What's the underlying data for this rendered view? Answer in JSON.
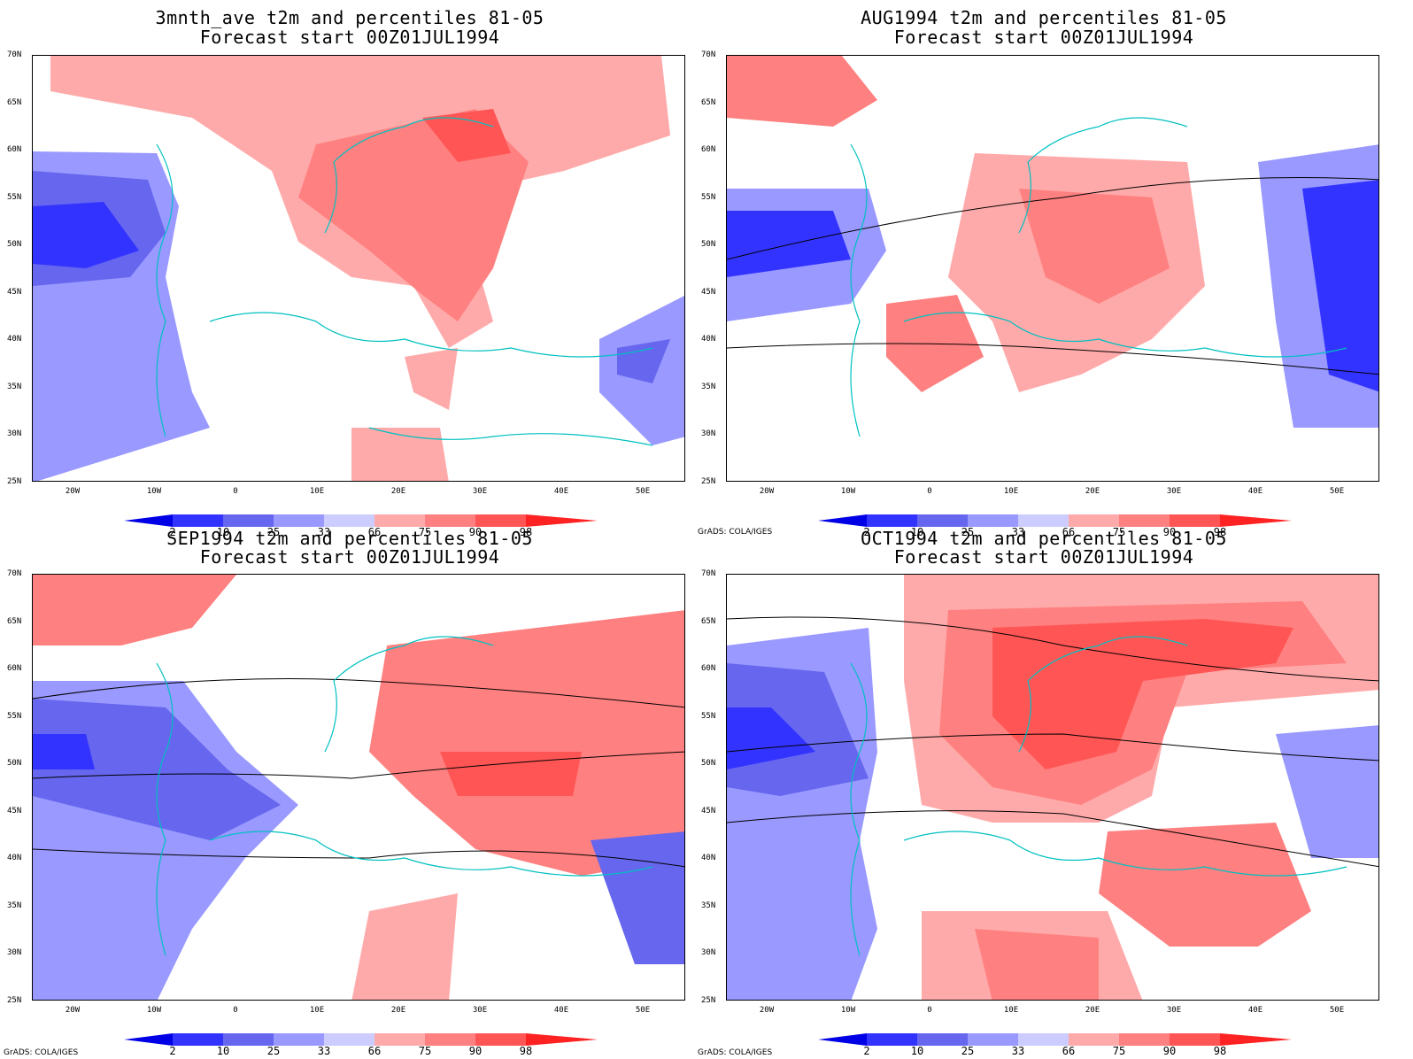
{
  "panels": [
    {
      "title_line1": "3mnth_ave t2m and percentiles 81-05",
      "title_line2": "Forecast start 00Z01JUL1994"
    },
    {
      "title_line1": "AUG1994 t2m and percentiles 81-05",
      "title_line2": "Forecast start 00Z01JUL1994"
    },
    {
      "title_line1": "SEP1994 t2m and percentiles 81-05",
      "title_line2": "Forecast start 00Z01JUL1994"
    },
    {
      "title_line1": "OCT1994 t2m and percentiles 81-05",
      "title_line2": "Forecast start 00Z01JUL1994"
    }
  ],
  "lat_labels": [
    "70N",
    "65N",
    "60N",
    "55N",
    "50N",
    "45N",
    "40N",
    "35N",
    "30N",
    "25N"
  ],
  "lon_labels": [
    "20W",
    "10W",
    "0",
    "10E",
    "20E",
    "30E",
    "40E",
    "50E"
  ],
  "colorbar": {
    "labels": [
      "2",
      "10",
      "25",
      "33",
      "66",
      "75",
      "90",
      "98"
    ],
    "colors": [
      "#0000e6",
      "#3333ff",
      "#6666ee",
      "#9999ff",
      "#ccccff",
      "#ffffff",
      "#ffaaaa",
      "#ff8080",
      "#ff5555",
      "#ff2222"
    ]
  },
  "credit": "GrADS: COLA/IGES",
  "colors": {
    "coastline": "#00c0c0",
    "contour": "#000000"
  }
}
